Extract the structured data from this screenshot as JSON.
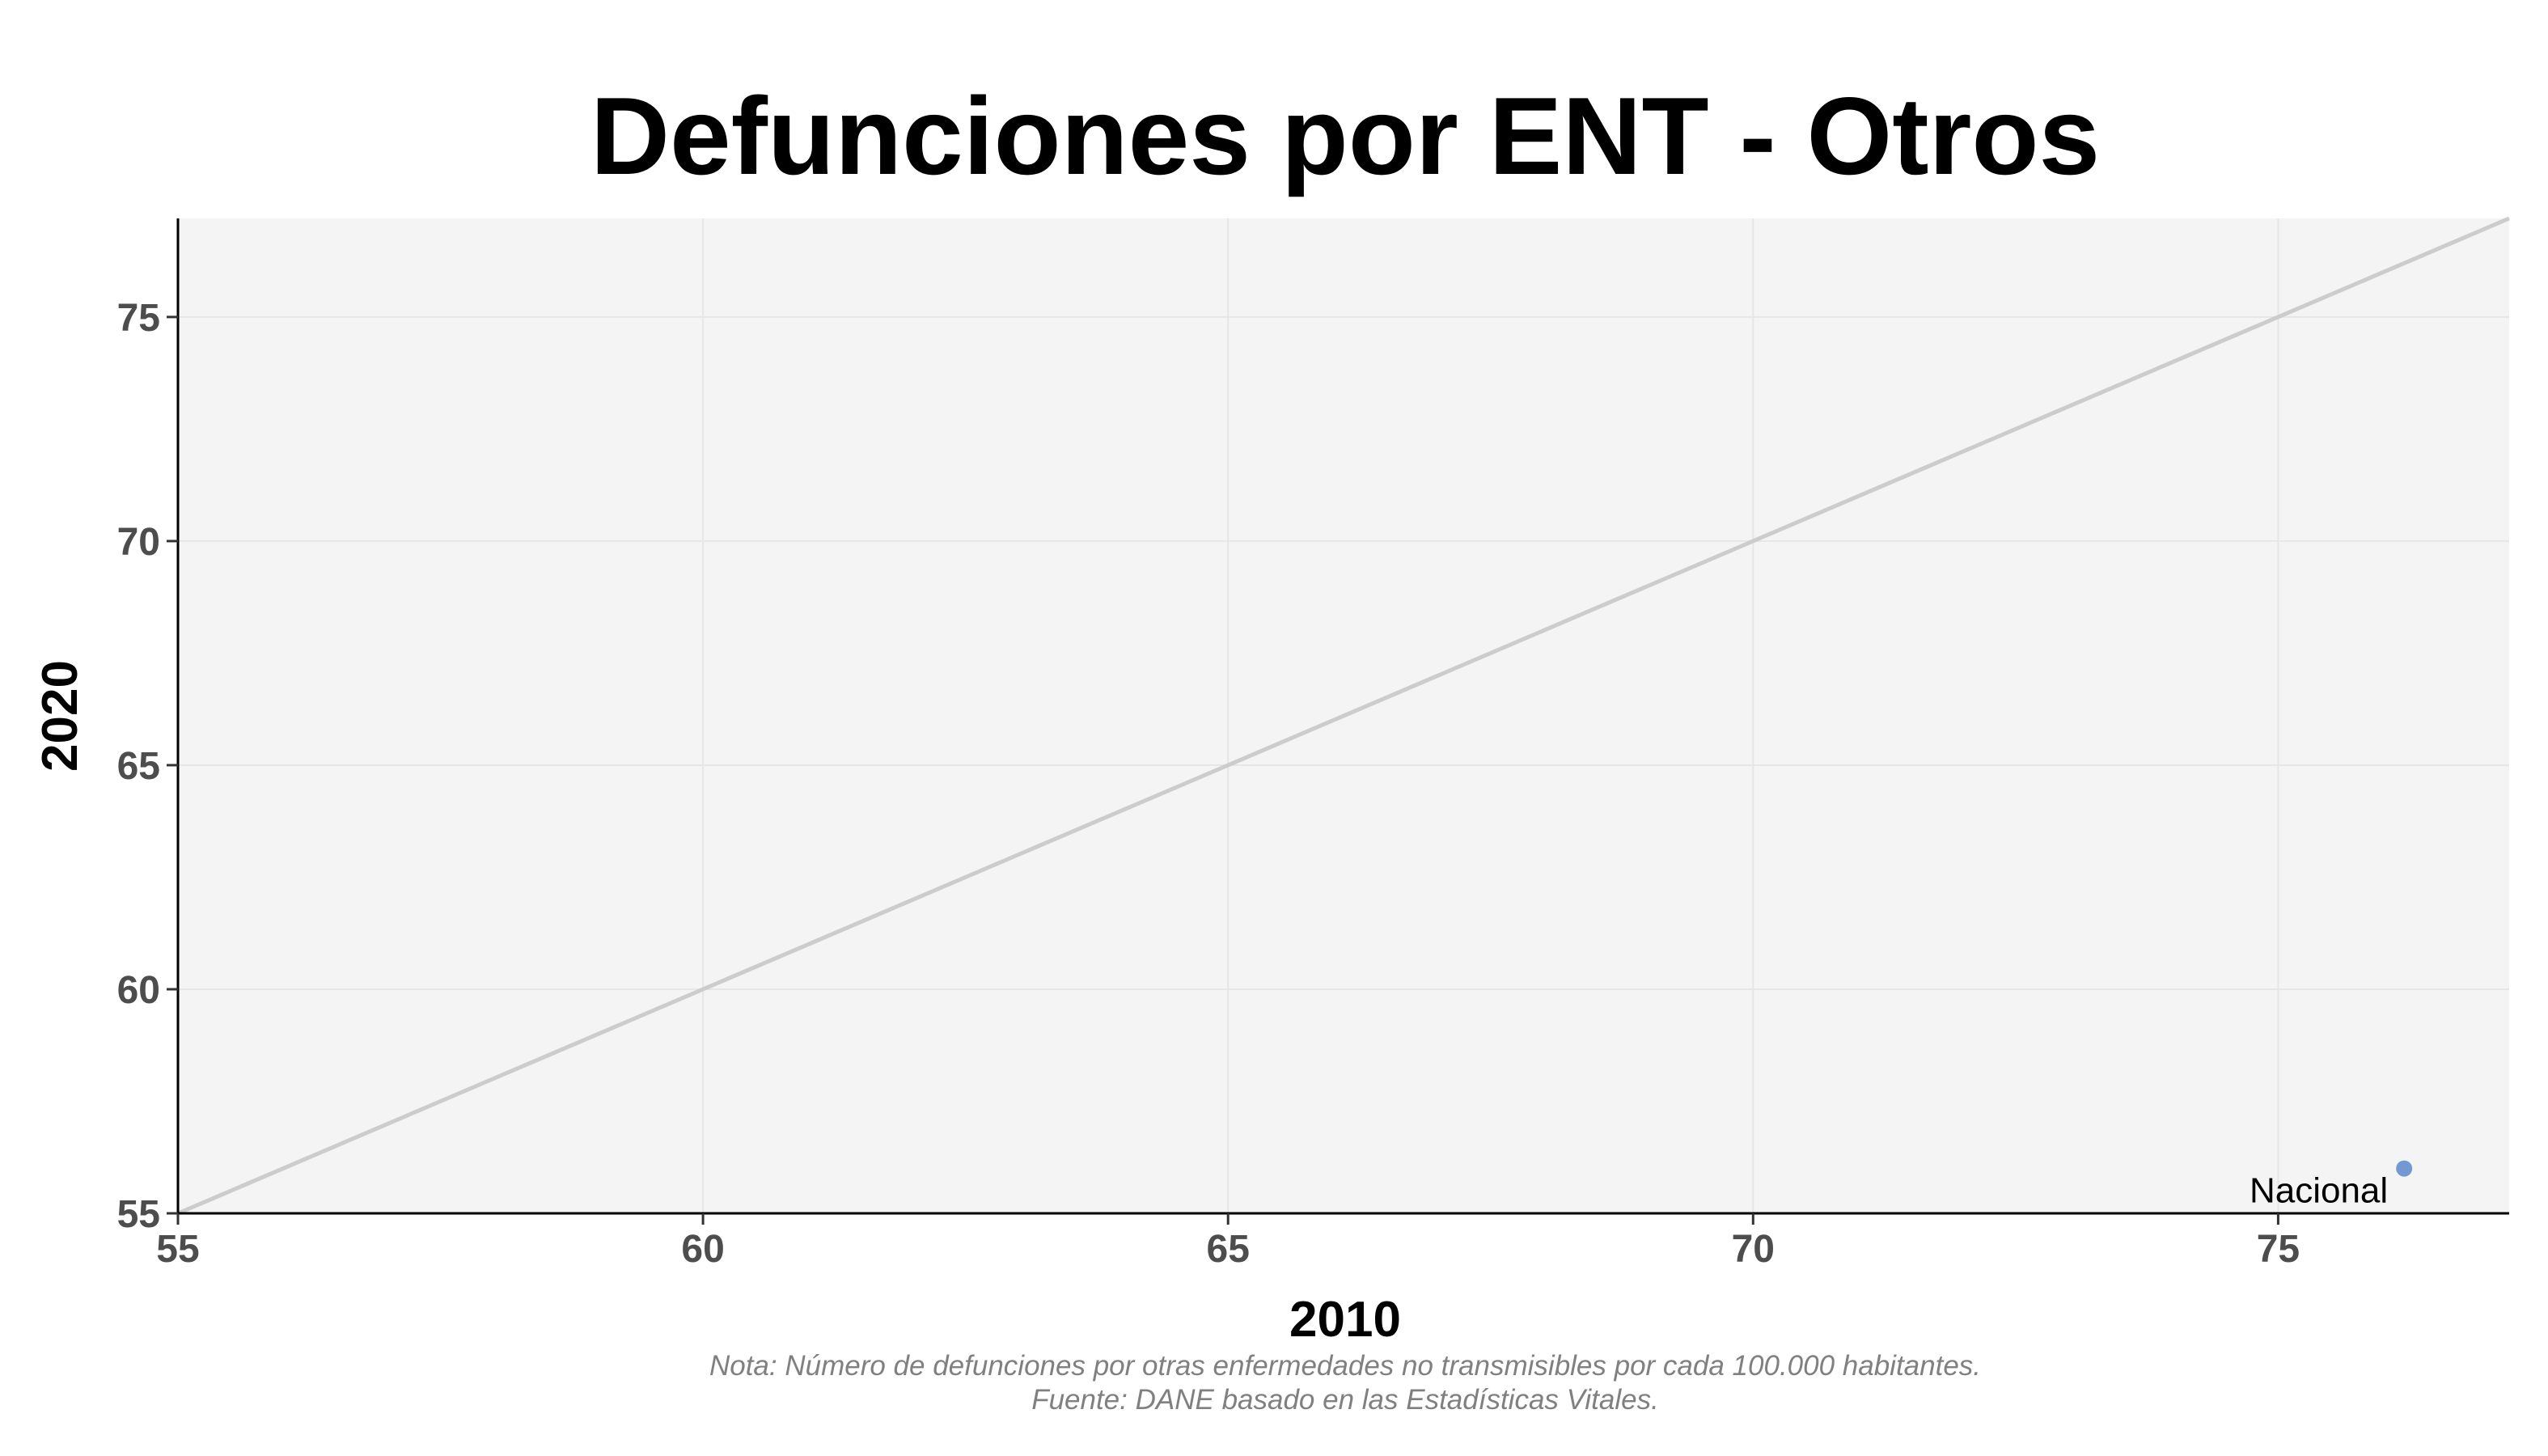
{
  "chart_data": {
    "type": "scatter",
    "title": "Defunciones por ENT - Otros",
    "xlabel": "2010",
    "ylabel": "2020",
    "xlim": [
      55,
      77.2
    ],
    "ylim": [
      55,
      77.2
    ],
    "x_ticks": [
      "55",
      "60",
      "65",
      "70",
      "75"
    ],
    "y_ticks": [
      "55",
      "60",
      "65",
      "70",
      "75"
    ],
    "reference_line": "y = x",
    "grid": true,
    "points": [
      {
        "label": "Nacional",
        "x": 76.2,
        "y": 56.0
      }
    ],
    "caption": [
      "Nota: Número de defunciones por otras enfermedades no transmisibles por cada 100.000 habitantes.",
      "Fuente: DANE basado en las Estadísticas Vitales."
    ]
  },
  "colors": {
    "panel_background": "#f4f4f4",
    "grid": "#e6e6e6",
    "reference_line": "#cccccc",
    "point": "#7299d1",
    "axis": "#000000"
  }
}
